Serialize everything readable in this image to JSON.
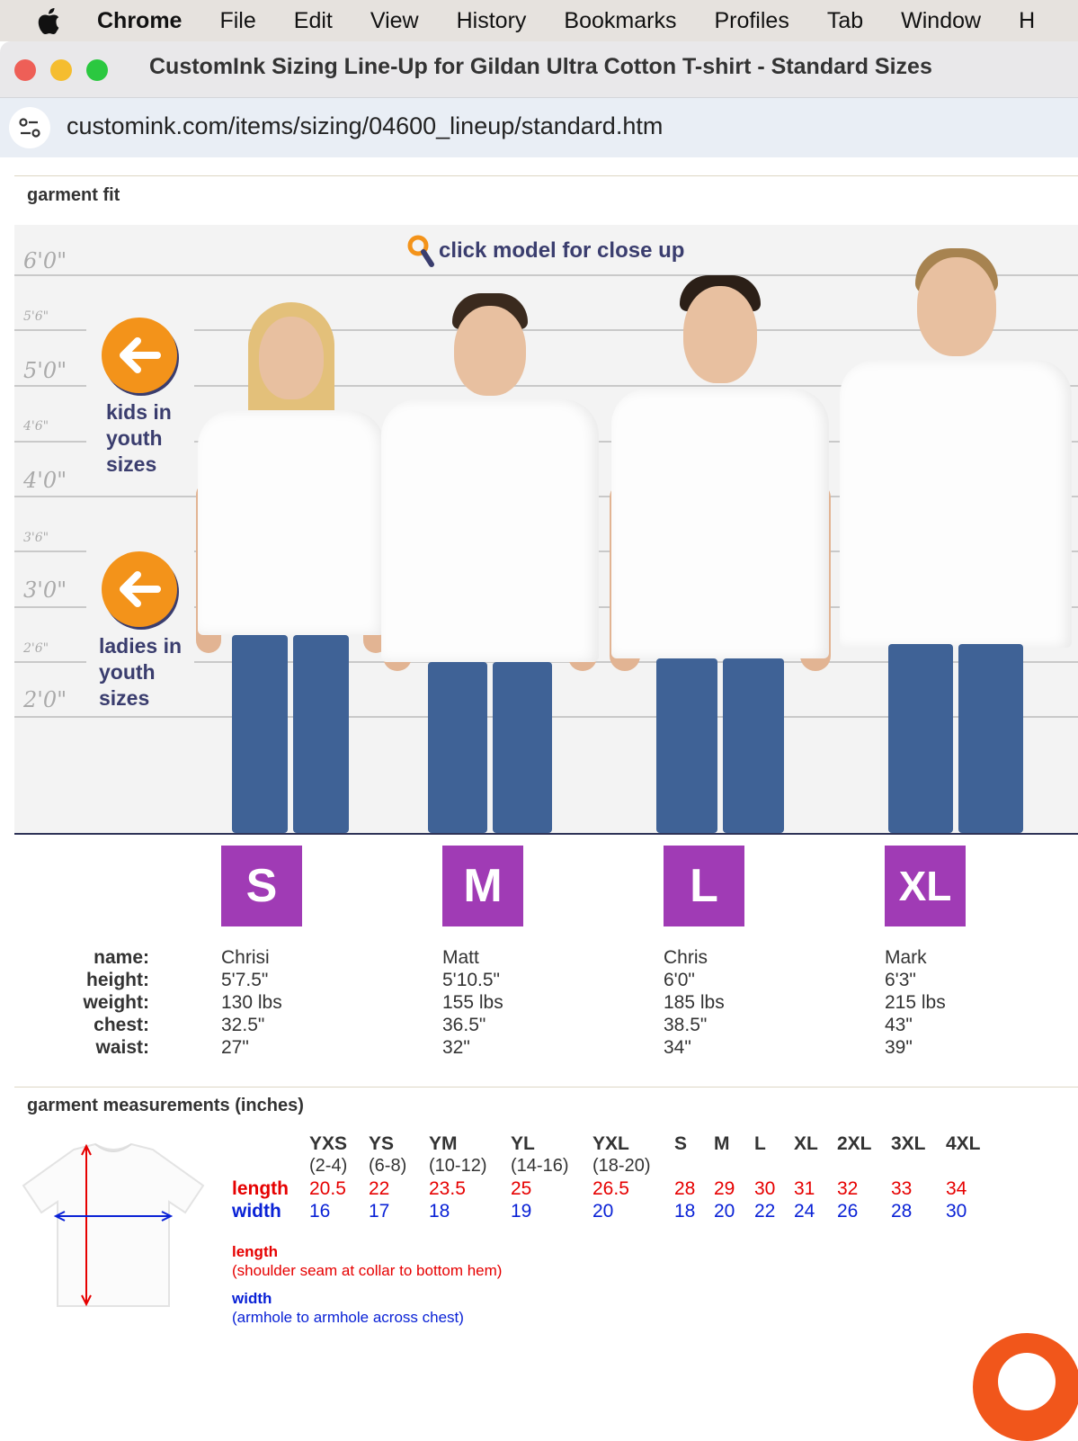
{
  "menubar": {
    "items": [
      "Chrome",
      "File",
      "Edit",
      "View",
      "History",
      "Bookmarks",
      "Profiles",
      "Tab",
      "Window",
      "H"
    ]
  },
  "window": {
    "title": "CustomInk Sizing Line-Up for Gildan Ultra Cotton T-shirt - Standard Sizes",
    "url": "customink.com/items/sizing/04600_lineup/standard.htm"
  },
  "garment_fit": {
    "title": "garment fit",
    "close_up_hint": "click model for close up",
    "ruler": [
      "6'0\"",
      "5'6\"",
      "5'0\"",
      "4'6\"",
      "4'0\"",
      "3'6\"",
      "3'0\"",
      "2'6\"",
      "2'0\""
    ],
    "kids_link": [
      "kids in",
      "youth",
      "sizes"
    ],
    "ladies_link": [
      "ladies in",
      "youth",
      "sizes"
    ]
  },
  "models": {
    "labels": [
      "name:",
      "height:",
      "weight:",
      "chest:",
      "waist:"
    ],
    "items": [
      {
        "size": "S",
        "name": "Chrisi",
        "height": "5'7.5\"",
        "weight": "130 lbs",
        "chest": "32.5\"",
        "waist": "27\""
      },
      {
        "size": "M",
        "name": "Matt",
        "height": "5'10.5\"",
        "weight": "155 lbs",
        "chest": "36.5\"",
        "waist": "32\""
      },
      {
        "size": "L",
        "name": "Chris",
        "height": "6'0\"",
        "weight": "185 lbs",
        "chest": "38.5\"",
        "waist": "34\""
      },
      {
        "size": "XL",
        "name": "Mark",
        "height": "6'3\"",
        "weight": "215 lbs",
        "chest": "43\"",
        "waist": "39\""
      }
    ]
  },
  "measurements": {
    "title": "garment measurements (inches)",
    "row_length": "length",
    "row_width": "width",
    "columns": [
      {
        "size": "YXS",
        "range": "(2-4)",
        "length": "20.5",
        "width": "16"
      },
      {
        "size": "YS",
        "range": "(6-8)",
        "length": "22",
        "width": "17"
      },
      {
        "size": "YM",
        "range": "(10-12)",
        "length": "23.5",
        "width": "18"
      },
      {
        "size": "YL",
        "range": "(14-16)",
        "length": "25",
        "width": "19"
      },
      {
        "size": "YXL",
        "range": "(18-20)",
        "length": "26.5",
        "width": "20"
      },
      {
        "size": "S",
        "range": "",
        "length": "28",
        "width": "18"
      },
      {
        "size": "M",
        "range": "",
        "length": "29",
        "width": "20"
      },
      {
        "size": "L",
        "range": "",
        "length": "30",
        "width": "22"
      },
      {
        "size": "XL",
        "range": "",
        "length": "31",
        "width": "24"
      },
      {
        "size": "2XL",
        "range": "",
        "length": "32",
        "width": "26"
      },
      {
        "size": "3XL",
        "range": "",
        "length": "33",
        "width": "28"
      },
      {
        "size": "4XL",
        "range": "",
        "length": "34",
        "width": "30"
      }
    ],
    "legend": {
      "length_title": "length",
      "length_desc": "(shoulder seam at collar to bottom hem)",
      "width_title": "width",
      "width_desc": "(armhole to armhole across chest)"
    }
  },
  "colors": {
    "size_badge": "#a03bb5",
    "accent_orange": "#f3931a",
    "navy": "#3a3d6e",
    "length_red": "#e60000",
    "width_blue": "#0a22d6"
  }
}
